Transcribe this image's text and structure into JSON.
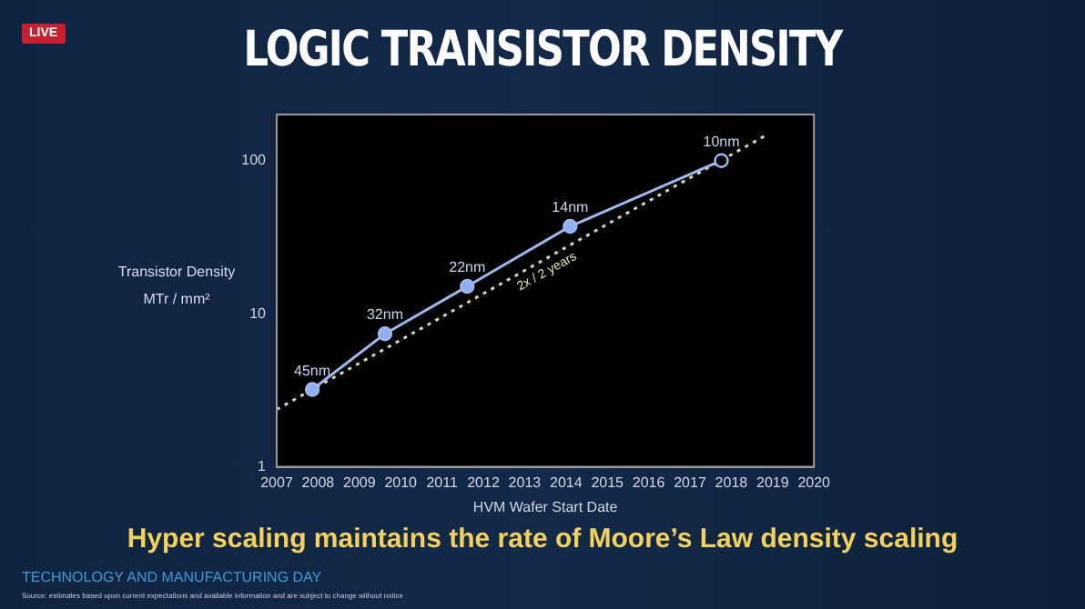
{
  "chart_data": {
    "type": "line",
    "title": "LOGIC TRANSISTOR DENSITY",
    "subtitle": "Hyper scaling maintains the rate of Moore’s Law density scaling",
    "xlabel": "HVM Wafer Start Date",
    "ylabel": "Transistor Density MTr / mm²",
    "series": [
      {
        "color": "#9fb9ec",
        "x": [
          2007.86,
          2009.62,
          2011.61,
          2014.1,
          2017.76
        ],
        "values": [
          3.2,
          7.4,
          15.1,
          37.2,
          100
        ],
        "colors": [
          "#8fb0f0",
          "#8fb0f0",
          "#8fb0f0",
          "#8fb0f0",
          "#000000"
        ],
        "marker": "circle"
      },
      {
        "color": "#d8d8b0",
        "x": [
          2007,
          2018.87
        ],
        "values": [
          2.37,
          148
        ],
        "marker": "none",
        "line_style": "dotted"
      }
    ],
    "xlim": [
      2007,
      2020
    ],
    "xticks": [
      2007,
      2008,
      2009,
      2010,
      2011,
      2012,
      2013,
      2014,
      2015,
      2016,
      2017,
      2018,
      2019,
      2020
    ],
    "ylim": [
      1,
      200
    ],
    "yticks": [
      1,
      10,
      100
    ],
    "log": true,
    "grid": false,
    "legend": false,
    "annotations": [
      {
        "text": "45nm",
        "x": 2007.86,
        "y": 3.2
      },
      {
        "text": "32nm",
        "x": 2009.62,
        "y": 7.4
      },
      {
        "text": "22nm",
        "x": 2011.61,
        "y": 15.1
      },
      {
        "text": "14nm",
        "x": 2014.1,
        "y": 37.2
      },
      {
        "text": "10nm",
        "x": 2017.76,
        "y": 100
      },
      {
        "text": "2x / 2 years",
        "x": 2013.4,
        "y": 22
      },
      "LIVE",
      "TECHNOLOGY AND MANUFACTURING DAY",
      "Source: estimates based upon current expectations and available information and are subject to change without notice"
    ]
  }
}
